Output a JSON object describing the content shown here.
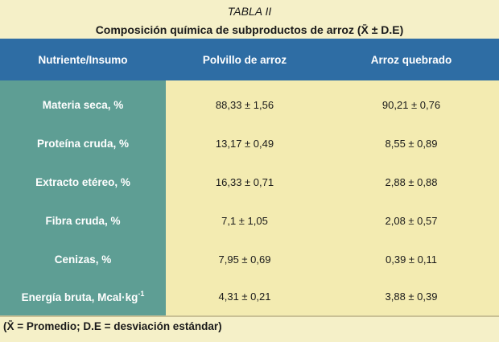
{
  "table_label": "TABLA II",
  "caption": "Composición química de subproductos de arroz (X̄ ± D.E)",
  "headers": [
    "Nutriente/Insumo",
    "Polvillo de arroz",
    "Arroz quebrado"
  ],
  "rows": [
    {
      "nutrient": "Materia seca, %",
      "polvillo": "88,33 ± 1,56",
      "quebrado": "90,21 ± 0,76"
    },
    {
      "nutrient": "Proteína cruda, %",
      "polvillo": "13,17 ± 0,49",
      "quebrado": "8,55 ± 0,89"
    },
    {
      "nutrient": "Extracto etéreo, %",
      "polvillo": "16,33 ± 0,71",
      "quebrado": "2,88 ± 0,88"
    },
    {
      "nutrient": "Fibra cruda, %",
      "polvillo": "7,1 ± 1,05",
      "quebrado": "2,08 ± 0,57"
    },
    {
      "nutrient": "Cenizas, %",
      "polvillo": "7,95 ± 0,69",
      "quebrado": "0,39 ± 0,11"
    },
    {
      "nutrient": "Energía bruta, Mcal·kg",
      "nutrient_sup": "-1",
      "polvillo": "4,31 ± 0,21",
      "quebrado": "3,88 ± 0,39"
    }
  ],
  "footnote": "(X̄ = Promedio; D.E = desviación estándar)"
}
